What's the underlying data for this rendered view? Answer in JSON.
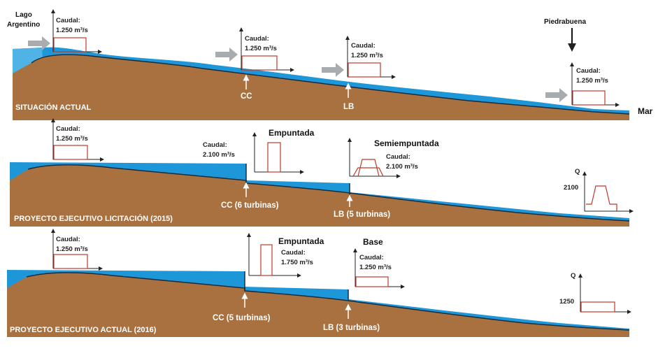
{
  "colors": {
    "water": "#1e97d8",
    "earth": "#a8713f",
    "sky_water": "#7fcdf0",
    "flow": "#c0392b",
    "arrow": "#a9acae"
  },
  "places": {
    "lago": "Lago Argentino",
    "piedrabuena": "Piedrabuena",
    "mar": "Mar"
  },
  "panels": [
    {
      "title": "SITUACIÓN  ACTUAL",
      "flows": [
        {
          "caudal": "Caudal:",
          "value": "1.250 m³/s"
        },
        {
          "caudal": "Caudal:",
          "value": "1.250 m³/s"
        },
        {
          "caudal": "Caudal:",
          "value": "1.250 m³/s"
        },
        {
          "caudal": "Caudal:",
          "value": "1.250 m³/s"
        }
      ],
      "sites": [
        "CC",
        "LB"
      ]
    },
    {
      "title": "PROYECTO EJECUTIVO LICITACIÓN (2015)",
      "flows": [
        {
          "caudal": "Caudal:",
          "value": "1.250 m³/s"
        },
        {
          "caudal": "Caudal:",
          "value": "2.100 m³/s",
          "mode": "Empuntada"
        },
        {
          "caudal": "Caudal:",
          "value": "2.100 m³/s",
          "mode": "Semiempuntada"
        }
      ],
      "axis": {
        "q": "Q",
        "value": "2100"
      },
      "sites": [
        "CC (6 turbinas)",
        "LB (5 turbinas)"
      ]
    },
    {
      "title": "PROYECTO EJECUTIVO ACTUAL (2016)",
      "flows": [
        {
          "caudal": "Caudal:",
          "value": "1.250 m³/s"
        },
        {
          "caudal": "Caudal:",
          "value": "1.750 m³/s",
          "mode": "Empuntada"
        },
        {
          "caudal": "Caudal:",
          "value": "1.250 m³/s",
          "mode": "Base"
        }
      ],
      "axis": {
        "q": "Q",
        "value": "1250"
      },
      "sites": [
        "CC (5 turbinas)",
        "LB (3 turbinas)"
      ]
    }
  ]
}
